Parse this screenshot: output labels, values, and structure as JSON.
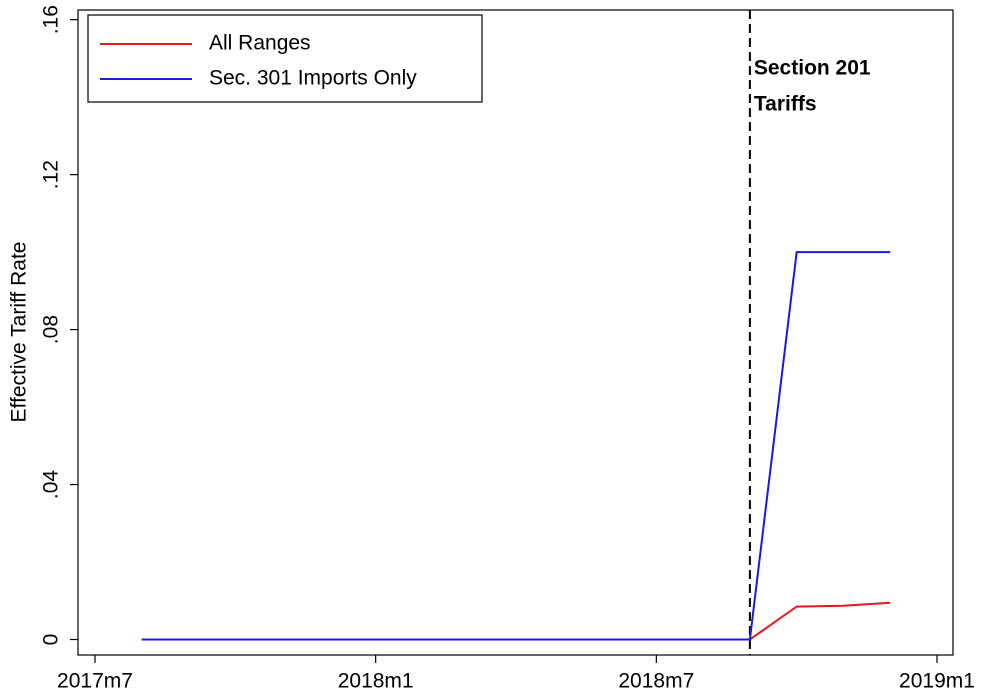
{
  "chart_data": {
    "type": "line",
    "ylabel": "Effective Tariff Rate",
    "x": [
      "2017m8",
      "2017m9",
      "2017m10",
      "2017m11",
      "2017m12",
      "2018m1",
      "2018m2",
      "2018m3",
      "2018m4",
      "2018m5",
      "2018m6",
      "2018m7",
      "2018m8",
      "2018m9",
      "2018m10",
      "2018m11",
      "2018m12"
    ],
    "series": [
      {
        "name": "All Ranges",
        "color": "#e8191c",
        "values": [
          0,
          0,
          0,
          0,
          0,
          0,
          0,
          0,
          0,
          0,
          0,
          0,
          0,
          0,
          0.0085,
          0.0087,
          0.0095
        ]
      },
      {
        "name": "Sec. 301 Imports Only",
        "color": "#1a1adb",
        "values": [
          0,
          0,
          0,
          0,
          0,
          0,
          0,
          0,
          0,
          0,
          0,
          0,
          0,
          0,
          0.1,
          0.1,
          0.1
        ]
      }
    ],
    "xlim": [
      "2017m7",
      "2019m1"
    ],
    "xticks": [
      "2017m7",
      "2018m1",
      "2018m7",
      "2019m1"
    ],
    "ylim": [
      -0.004,
      0.1625
    ],
    "yticks": [
      0,
      {
        "value": 0.04,
        "label": ".04"
      },
      {
        "value": 0.08,
        "label": ".08"
      },
      {
        "value": 0.12,
        "label": ".12"
      },
      {
        "value": 0.16,
        "label": ".16"
      }
    ],
    "vline": {
      "x": "2018m9",
      "label": [
        "Section 201",
        "Tariffs"
      ]
    },
    "legend": "top-left"
  }
}
